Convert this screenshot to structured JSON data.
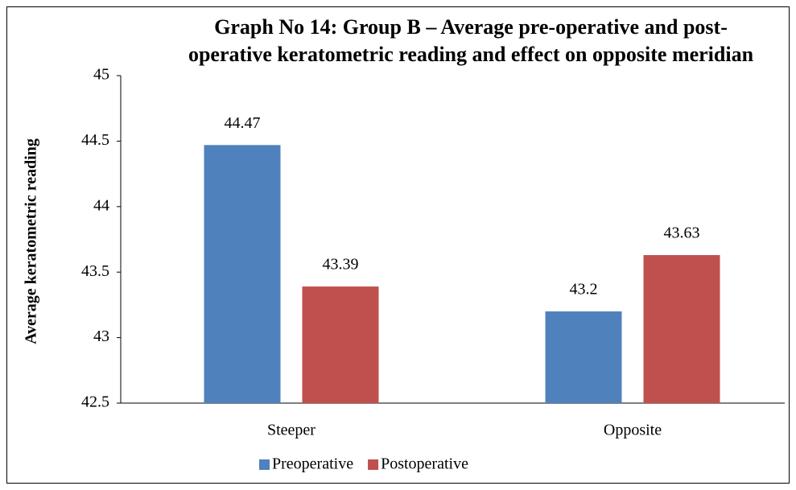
{
  "chart_data": {
    "type": "bar",
    "title": "Graph No 14: Group B – Average pre-operative and post-operative keratometric reading and effect on opposite meridian",
    "y_label": "Average keratometric reading",
    "categories": [
      "Steeper",
      "Opposite"
    ],
    "series": [
      {
        "name": "Preoperative",
        "color": "#4f81bd",
        "values": [
          44.47,
          43.2
        ]
      },
      {
        "name": "Postoperative",
        "color": "#c0504d",
        "values": [
          43.39,
          43.63
        ]
      }
    ],
    "ylim": [
      42.5,
      45
    ],
    "yticks": [
      42.5,
      43,
      43.5,
      44,
      44.5,
      45
    ],
    "legend": "bottom",
    "grid": false
  }
}
